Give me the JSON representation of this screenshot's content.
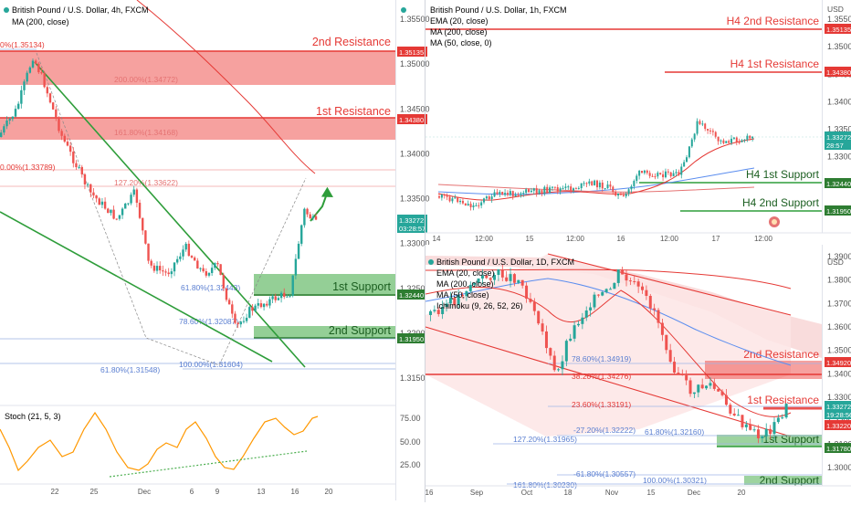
{
  "colors": {
    "bull": "#26a69a",
    "bear": "#ef5350",
    "resistance_zone": "#ef5350",
    "support_zone": "#4caf50",
    "res_text": "#e53935",
    "sup_text": "#2e7d32",
    "ma200": "#e53935",
    "fib": "#5b7fd1"
  },
  "panel_4h": {
    "header": {
      "title": "British Pound / U.S. Dollar, 4h, FXCM",
      "ma": "MA (200, close)"
    },
    "price_ticks": [
      "1.35500",
      "1.35000",
      "1.34500",
      "1.34000",
      "1.33500",
      "1.33000",
      "1.32500",
      "1.32000",
      "1.31500"
    ],
    "price_badges": [
      {
        "text": "1.35135",
        "kind": "res"
      },
      {
        "text": "1.34380",
        "kind": "res"
      },
      {
        "text": "1.33272",
        "kind": "last"
      },
      {
        "text": "03:28:57",
        "kind": "last"
      },
      {
        "text": "1.32440",
        "kind": "sup"
      },
      {
        "text": "1.31950",
        "kind": "sup"
      }
    ],
    "time_ticks": [
      "22",
      "25",
      "Dec",
      "6",
      "9",
      "13",
      "16",
      "20"
    ],
    "zones": {
      "res2": "2nd Resistance",
      "res1": "1st Resistance",
      "sup1": "1st Support",
      "sup2": "2nd Support"
    },
    "fib_labels": [
      "0%(1.35134)",
      "200.00%(1.34772)",
      "161.80%(1.34168)",
      "0.00%(1.33789)",
      "127.20%(1.33622)",
      "61.80%(1.32443)",
      "78.60%(1.32087)",
      "61.80%(1.31548)",
      "100.00%(1.31604)"
    ],
    "stoch": {
      "title": "Stoch (21, 5, 3)",
      "ticks": [
        "75.00",
        "50.00",
        "25.00"
      ]
    }
  },
  "panel_1h": {
    "header": {
      "title": "British Pound / U.S. Dollar, 1h, FXCM",
      "ema": "EMA (20, close)",
      "ma200": "MA (200, close)",
      "ma50": "MA (50, close, 0)"
    },
    "currency": "USD",
    "price_ticks": [
      "1.35500",
      "1.35000",
      "1.34500",
      "1.34000",
      "1.33500",
      "1.33000",
      "1.32500",
      "1.32000"
    ],
    "price_badges": [
      {
        "text": "1.35135",
        "kind": "res"
      },
      {
        "text": "1.34380",
        "kind": "res"
      },
      {
        "text": "1.33272",
        "kind": "last"
      },
      {
        "text": "28:57",
        "kind": "last"
      },
      {
        "text": "1.32440",
        "kind": "sup"
      },
      {
        "text": "1.31950",
        "kind": "sup"
      }
    ],
    "time_ticks": [
      "14",
      "12:00",
      "15",
      "12:00",
      "16",
      "12:00",
      "17",
      "12:00"
    ],
    "levels": {
      "res2": "H4 2nd Resistance",
      "res1": "H4 1st Resistance",
      "sup1": "H4 1st Support",
      "sup2": "H4 2nd Support"
    }
  },
  "panel_1d": {
    "header": {
      "title": "British Pound / U.S. Dollar, 1D, FXCM",
      "ema": "EMA (20, close)",
      "ma200": "MA (200, close)",
      "ma50": "MA (50, close)",
      "ichimoku": "Ichimoku (9, 26, 52, 26)"
    },
    "currency": "USD",
    "price_ticks": [
      "1.39000",
      "1.38000",
      "1.37000",
      "1.36000",
      "1.35000",
      "1.34000",
      "1.33000",
      "1.32000",
      "1.31000",
      "1.30000"
    ],
    "price_badges": [
      {
        "text": "1.34920",
        "kind": "res"
      },
      {
        "text": "1.33272",
        "kind": "last"
      },
      {
        "text": "19:28:56",
        "kind": "last"
      },
      {
        "text": "1.33220",
        "kind": "res"
      },
      {
        "text": "1.31780",
        "kind": "sup"
      }
    ],
    "time_ticks": [
      "16",
      "Sep",
      "Oct",
      "18",
      "Nov",
      "15",
      "Dec",
      "20"
    ],
    "zones": {
      "res2": "2nd Resistance",
      "res1": "1st Resistance",
      "sup1": "1st Support",
      "sup2": "2nd Support"
    },
    "fib_labels": [
      "78.60%(1.34919)",
      "38.20%(1.34276)",
      "23.60%(1.33191)",
      "-27.20%(1.32222)",
      "61.80%(1.32160)",
      "127.20%(1.31965)",
      "-61.80%(1.30557)",
      "100.00%(1.30321)",
      "161.80%(1.30230)"
    ]
  },
  "chart_data": [
    {
      "type": "candlestick",
      "title": "British Pound / U.S. Dollar, 4h, FXCM",
      "indicators": [
        "MA (200, close)",
        "Stoch (21, 5, 3)"
      ],
      "ylim": [
        1.313,
        1.357
      ],
      "x_ticks": [
        "22",
        "25",
        "Dec",
        "6",
        "9",
        "13",
        "16",
        "20"
      ],
      "levels": [
        {
          "name": "2nd Resistance",
          "value": 1.35135
        },
        {
          "name": "1st Resistance",
          "value": 1.3438
        },
        {
          "name": "1st Support",
          "value": 1.3244
        },
        {
          "name": "2nd Support",
          "value": 1.3195
        }
      ],
      "last_price": 1.33272
    },
    {
      "type": "candlestick",
      "title": "British Pound / U.S. Dollar, 1h, FXCM",
      "indicators": [
        "EMA (20, close)",
        "MA (200, close)",
        "MA (50, close, 0)"
      ],
      "x_ticks": [
        "14",
        "12:00",
        "15",
        "12:00",
        "16",
        "12:00",
        "17",
        "12:00"
      ],
      "levels": [
        {
          "name": "H4 2nd Resistance",
          "value": 1.35135
        },
        {
          "name": "H4 1st Resistance",
          "value": 1.3438
        },
        {
          "name": "H4 1st Support",
          "value": 1.3244
        },
        {
          "name": "H4 2nd Support",
          "value": 1.3195
        }
      ],
      "last_price": 1.33272
    },
    {
      "type": "candlestick",
      "title": "British Pound / U.S. Dollar, 1D, FXCM",
      "indicators": [
        "EMA (20, close)",
        "MA (200, close)",
        "MA (50, close)",
        "Ichimoku (9, 26, 52, 26)"
      ],
      "ylim": [
        1.298,
        1.393
      ],
      "x_ticks": [
        "16",
        "Sep",
        "Oct",
        "18",
        "Nov",
        "15",
        "Dec",
        "20"
      ],
      "levels": [
        {
          "name": "2nd Resistance",
          "value": 1.3492
        },
        {
          "name": "1st Resistance",
          "value": 1.3322
        },
        {
          "name": "1st Support",
          "value": 1.3178
        }
      ],
      "last_price": 1.33272
    }
  ]
}
